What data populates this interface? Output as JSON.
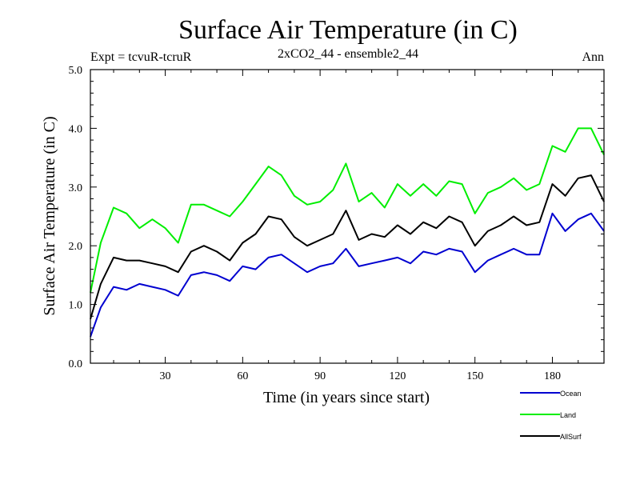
{
  "chart_data": {
    "type": "line",
    "title": "Surface Air Temperature (in C)",
    "subtitle": "2xCO2_44 - ensemble2_44",
    "left_label": "Expt = tcvuR-tcruR",
    "right_label": "Ann",
    "xlabel": "Time (in years since start)",
    "ylabel": "Surface Air Temperature (in C)",
    "xlim": [
      1,
      200
    ],
    "ylim": [
      0,
      5
    ],
    "x_ticks": [
      30,
      60,
      90,
      120,
      150,
      180
    ],
    "x_tick_labels": [
      "30",
      "60",
      "90",
      "120",
      "150",
      "180"
    ],
    "y_ticks": [
      0,
      1,
      2,
      3,
      4,
      5
    ],
    "y_tick_labels": [
      "0.0",
      "1.0",
      "2.0",
      "3.0",
      "4.0",
      "5.0"
    ],
    "grid": false,
    "legend_position": "bottom-right",
    "series": [
      {
        "name": "Ocean",
        "color": "#0000d0",
        "x": [
          1,
          5,
          10,
          15,
          20,
          25,
          30,
          35,
          40,
          45,
          50,
          55,
          60,
          65,
          70,
          75,
          80,
          85,
          90,
          95,
          100,
          105,
          110,
          115,
          120,
          125,
          130,
          135,
          140,
          145,
          150,
          155,
          160,
          165,
          170,
          175,
          180,
          185,
          190,
          195,
          200
        ],
        "values": [
          0.45,
          0.95,
          1.3,
          1.25,
          1.35,
          1.3,
          1.25,
          1.15,
          1.5,
          1.55,
          1.5,
          1.4,
          1.65,
          1.6,
          1.8,
          1.85,
          1.7,
          1.55,
          1.65,
          1.7,
          1.95,
          1.65,
          1.7,
          1.75,
          1.8,
          1.7,
          1.9,
          1.85,
          1.95,
          1.9,
          1.55,
          1.75,
          1.85,
          1.95,
          1.85,
          1.85,
          2.55,
          2.25,
          2.45,
          2.55,
          2.25
        ]
      },
      {
        "name": "Land",
        "color": "#00ee00",
        "x": [
          1,
          5,
          10,
          15,
          20,
          25,
          30,
          35,
          40,
          45,
          50,
          55,
          60,
          65,
          70,
          75,
          80,
          85,
          90,
          95,
          100,
          105,
          110,
          115,
          120,
          125,
          130,
          135,
          140,
          145,
          150,
          155,
          160,
          165,
          170,
          175,
          180,
          185,
          190,
          195,
          200
        ],
        "values": [
          1.2,
          2.05,
          2.65,
          2.55,
          2.3,
          2.45,
          2.3,
          2.05,
          2.7,
          2.7,
          2.6,
          2.5,
          2.75,
          3.05,
          3.35,
          3.2,
          2.85,
          2.7,
          2.75,
          2.95,
          3.4,
          2.75,
          2.9,
          2.65,
          3.05,
          2.85,
          3.05,
          2.85,
          3.1,
          3.05,
          2.55,
          2.9,
          3.0,
          3.15,
          2.95,
          3.05,
          3.7,
          3.6,
          4.0,
          4.0,
          3.55
        ]
      },
      {
        "name": "AllSurf",
        "color": "#000000",
        "x": [
          1,
          5,
          10,
          15,
          20,
          25,
          30,
          35,
          40,
          45,
          50,
          55,
          60,
          65,
          70,
          75,
          80,
          85,
          90,
          95,
          100,
          105,
          110,
          115,
          120,
          125,
          130,
          135,
          140,
          145,
          150,
          155,
          160,
          165,
          170,
          175,
          180,
          185,
          190,
          195,
          200
        ],
        "values": [
          0.75,
          1.35,
          1.8,
          1.75,
          1.75,
          1.7,
          1.65,
          1.55,
          1.9,
          2.0,
          1.9,
          1.75,
          2.05,
          2.2,
          2.5,
          2.45,
          2.15,
          2.0,
          2.1,
          2.2,
          2.6,
          2.1,
          2.2,
          2.15,
          2.35,
          2.2,
          2.4,
          2.3,
          2.5,
          2.4,
          2.0,
          2.25,
          2.35,
          2.5,
          2.35,
          2.4,
          3.05,
          2.85,
          3.15,
          3.2,
          2.75
        ]
      }
    ]
  }
}
